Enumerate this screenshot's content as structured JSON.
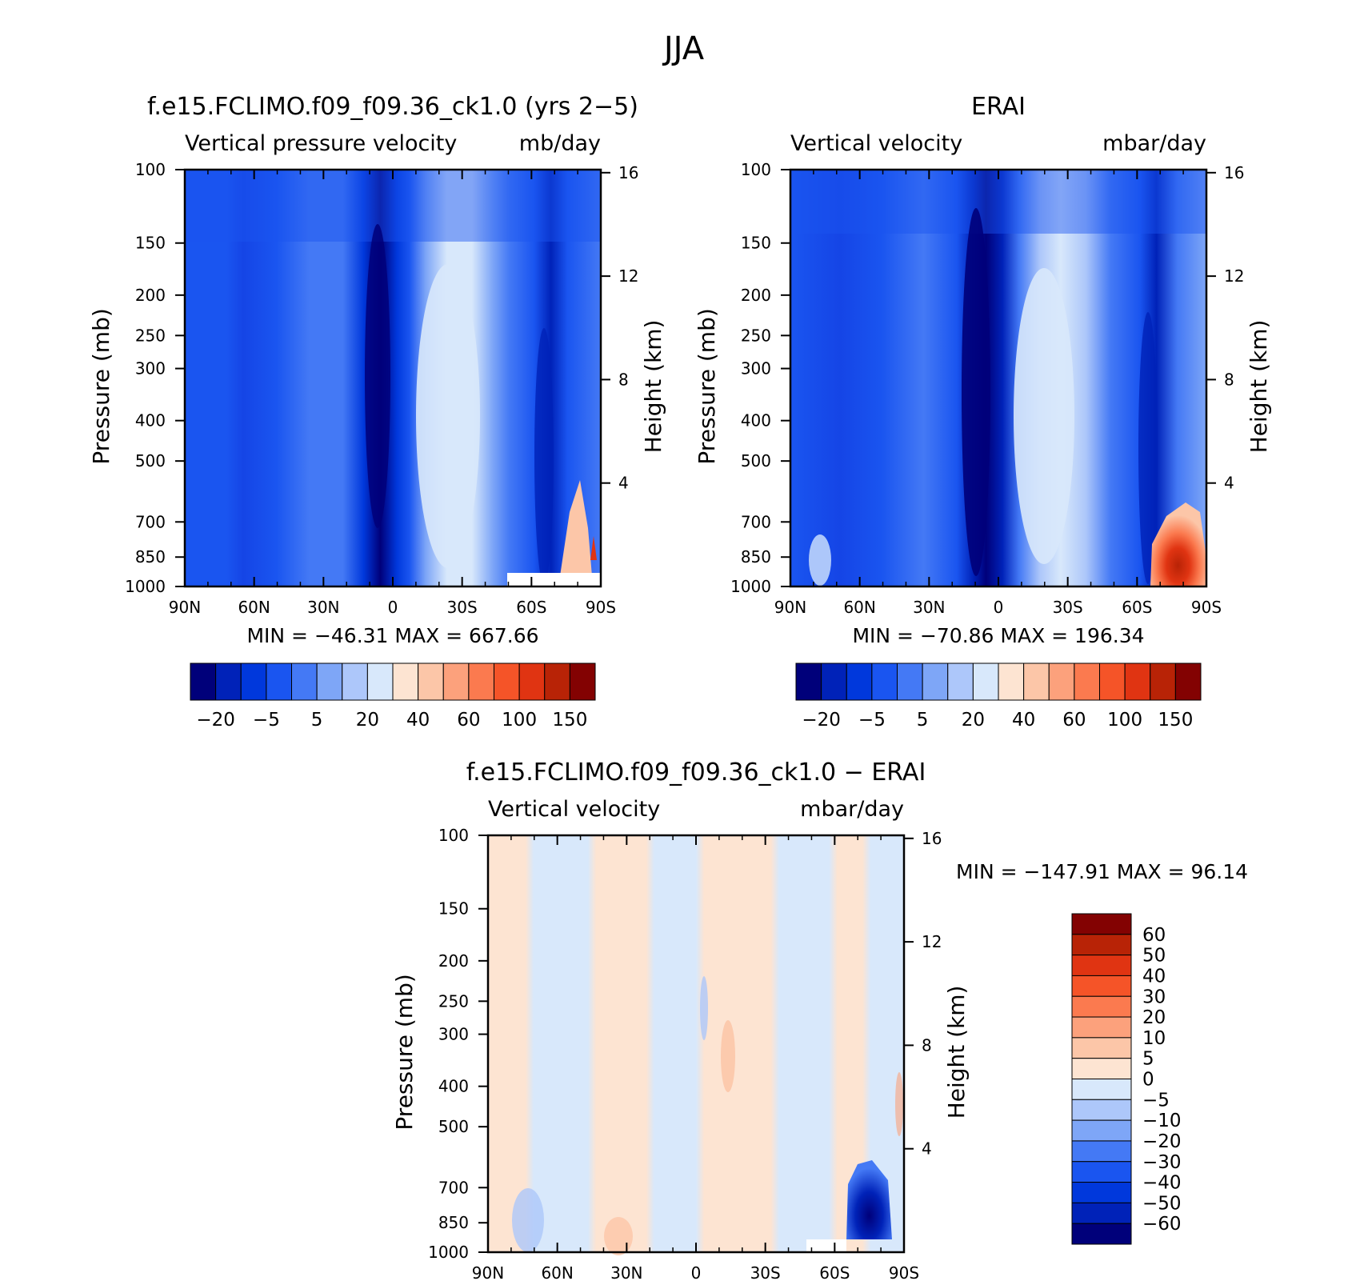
{
  "figure": {
    "title": "JJA"
  },
  "chart_data": [
    {
      "type": "heatmap",
      "title": "f.e15.FCLIMO.f09_f09.36_ck1.0 (yrs 2−5)",
      "subtitle_left": "Vertical pressure velocity",
      "subtitle_right": "mb/day",
      "ylabel": "Pressure (mb)",
      "ylabel_right": "Height (km)",
      "x_ticks": [
        "90N",
        "60N",
        "30N",
        "0",
        "30S",
        "60S",
        "90S"
      ],
      "y_ticks": [
        "100",
        "150",
        "200",
        "250",
        "300",
        "400",
        "500",
        "700",
        "850",
        "1000"
      ],
      "y_ticks_right": [
        "16",
        "12",
        "8",
        "4"
      ],
      "stats": "MIN = −46.31   MAX = 667.66",
      "colorbar": {
        "colors": [
          "#00007a",
          "#0022b8",
          "#0038dc",
          "#1a55f0",
          "#4479f5",
          "#7ea6f7",
          "#adc7fa",
          "#d8e8fb",
          "#fde4d2",
          "#fcc6a8",
          "#fca17c",
          "#fb7a4f",
          "#f55428",
          "#e03412",
          "#b82306",
          "#830202"
        ],
        "labels": [
          "−20",
          "−5",
          "5",
          "20",
          "40",
          "60",
          "100",
          "150"
        ]
      }
    },
    {
      "type": "heatmap",
      "title": "ERAI",
      "subtitle_left": "Vertical velocity",
      "subtitle_right": "mbar/day",
      "ylabel": "Pressure (mb)",
      "ylabel_right": "Height (km)",
      "x_ticks": [
        "90N",
        "60N",
        "30N",
        "0",
        "30S",
        "60S",
        "90S"
      ],
      "y_ticks": [
        "100",
        "150",
        "200",
        "250",
        "300",
        "400",
        "500",
        "700",
        "850",
        "1000"
      ],
      "y_ticks_right": [
        "16",
        "12",
        "8",
        "4"
      ],
      "stats": "MIN = −70.86   MAX = 196.34",
      "colorbar": {
        "colors": [
          "#00007a",
          "#0022b8",
          "#0038dc",
          "#1a55f0",
          "#4479f5",
          "#7ea6f7",
          "#adc7fa",
          "#d8e8fb",
          "#fde4d2",
          "#fcc6a8",
          "#fca17c",
          "#fb7a4f",
          "#f55428",
          "#e03412",
          "#b82306",
          "#830202"
        ],
        "labels": [
          "−20",
          "−5",
          "5",
          "20",
          "40",
          "60",
          "100",
          "150"
        ]
      }
    },
    {
      "type": "heatmap",
      "title": "f.e15.FCLIMO.f09_f09.36_ck1.0 − ERAI",
      "subtitle_left": "Vertical velocity",
      "subtitle_right": "mbar/day",
      "ylabel": "Pressure (mb)",
      "ylabel_right": "Height (km)",
      "x_ticks": [
        "90N",
        "60N",
        "30N",
        "0",
        "30S",
        "60S",
        "90S"
      ],
      "y_ticks": [
        "100",
        "150",
        "200",
        "250",
        "300",
        "400",
        "500",
        "700",
        "850",
        "1000"
      ],
      "y_ticks_right": [
        "16",
        "12",
        "8",
        "4"
      ],
      "stats": "MIN = −147.91   MAX =   96.14",
      "colorbar": {
        "colors": [
          "#830202",
          "#b82306",
          "#e03412",
          "#f55428",
          "#fb7a4f",
          "#fca17c",
          "#fcc6a8",
          "#fde4d2",
          "#d8e8fb",
          "#adc7fa",
          "#7ea6f7",
          "#4479f5",
          "#1a55f0",
          "#0038dc",
          "#0022b8",
          "#00007a"
        ],
        "labels": [
          "60",
          "50",
          "40",
          "30",
          "20",
          "10",
          "5",
          "0",
          "−5",
          "−10",
          "−20",
          "−30",
          "−40",
          "−50",
          "−60"
        ]
      }
    }
  ]
}
